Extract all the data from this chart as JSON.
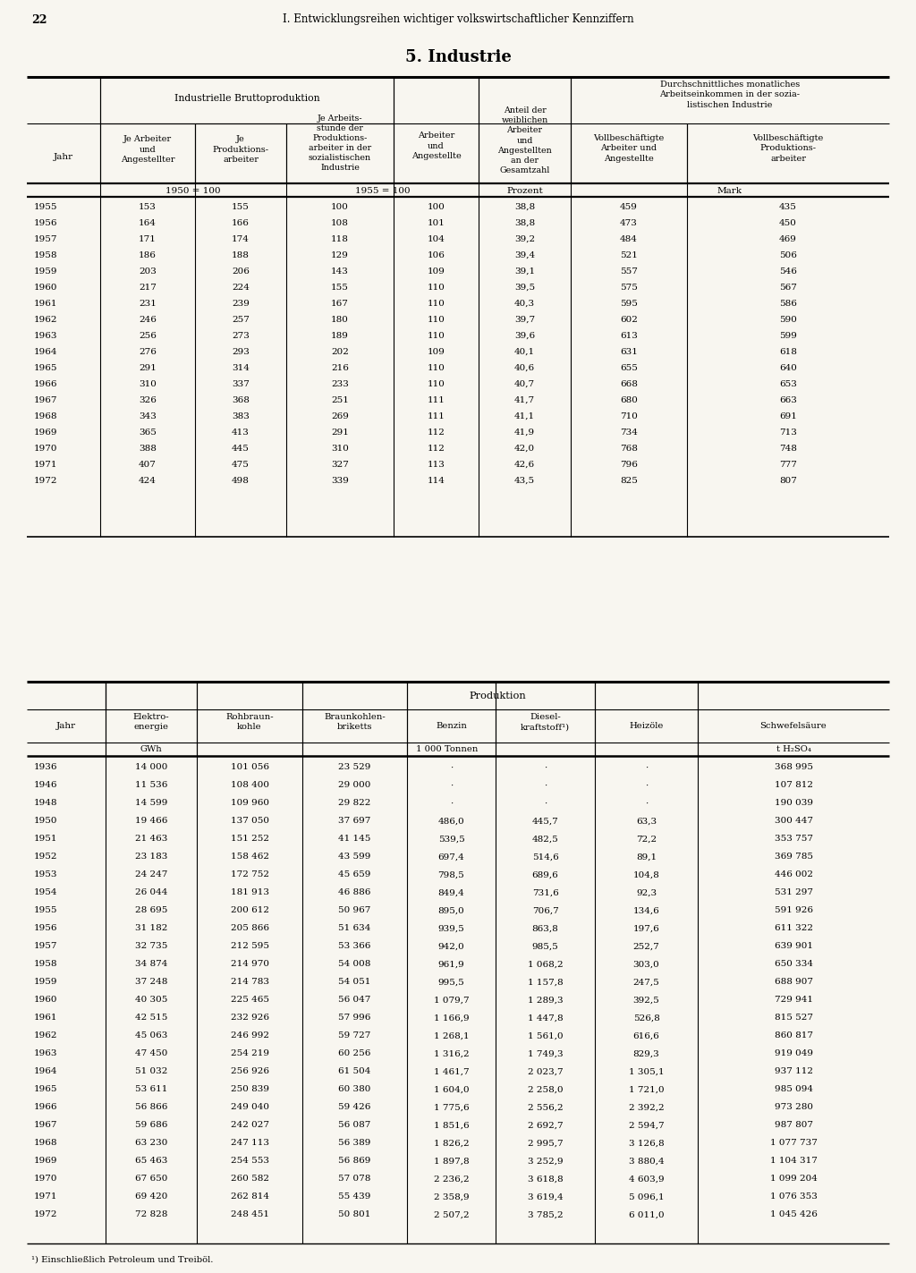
{
  "page_number": "22",
  "page_header": "I. Entwicklungsreihen wichtiger volkswirtschaftlicher Kennziffern",
  "section_title": "5. Industrie",
  "bg_color": "#f8f6f0",
  "table1": {
    "col_group1_label": "Industrielle Bruttoproduktion",
    "col_group2_label": "Durchschnittliches monatliches\nArbeitseinkommen in der sozia-\nlistischen Industrie",
    "data": [
      [
        "1955",
        "153",
        "155",
        "100",
        "100",
        "38,8",
        "459",
        "435"
      ],
      [
        "1956",
        "164",
        "166",
        "108",
        "101",
        "38,8",
        "473",
        "450"
      ],
      [
        "1957",
        "171",
        "174",
        "118",
        "104",
        "39,2",
        "484",
        "469"
      ],
      [
        "1958",
        "186",
        "188",
        "129",
        "106",
        "39,4",
        "521",
        "506"
      ],
      [
        "1959",
        "203",
        "206",
        "143",
        "109",
        "39,1",
        "557",
        "546"
      ],
      [
        "1960",
        "217",
        "224",
        "155",
        "110",
        "39,5",
        "575",
        "567"
      ],
      [
        "1961",
        "231",
        "239",
        "167",
        "110",
        "40,3",
        "595",
        "586"
      ],
      [
        "1962",
        "246",
        "257",
        "180",
        "110",
        "39,7",
        "602",
        "590"
      ],
      [
        "1963",
        "256",
        "273",
        "189",
        "110",
        "39,6",
        "613",
        "599"
      ],
      [
        "1964",
        "276",
        "293",
        "202",
        "109",
        "40,1",
        "631",
        "618"
      ],
      [
        "1965",
        "291",
        "314",
        "216",
        "110",
        "40,6",
        "655",
        "640"
      ],
      [
        "1966",
        "310",
        "337",
        "233",
        "110",
        "40,7",
        "668",
        "653"
      ],
      [
        "1967",
        "326",
        "368",
        "251",
        "111",
        "41,7",
        "680",
        "663"
      ],
      [
        "1968",
        "343",
        "383",
        "269",
        "111",
        "41,1",
        "710",
        "691"
      ],
      [
        "1969",
        "365",
        "413",
        "291",
        "112",
        "41,9",
        "734",
        "713"
      ],
      [
        "1970",
        "388",
        "445",
        "310",
        "112",
        "42,0",
        "768",
        "748"
      ],
      [
        "1971",
        "407",
        "475",
        "327",
        "113",
        "42,6",
        "796",
        "777"
      ],
      [
        "1972",
        "424",
        "498",
        "339",
        "114",
        "43,5",
        "825",
        "807"
      ]
    ]
  },
  "table2": {
    "main_header": "Produktion",
    "footnote": "¹) Einschließlich Petroleum und Treiböl.",
    "data": [
      [
        "1936",
        "14 000",
        "101 056",
        "23 529",
        "·",
        "·",
        "·",
        "368 995"
      ],
      [
        "1946",
        "11 536",
        "108 400",
        "29 000",
        "·",
        "·",
        "·",
        "107 812"
      ],
      [
        "1948",
        "14 599",
        "109 960",
        "29 822",
        "·",
        "·",
        "·",
        "190 039"
      ],
      [
        "1950",
        "19 466",
        "137 050",
        "37 697",
        "486,0",
        "445,7",
        "63,3",
        "300 447"
      ],
      [
        "1951",
        "21 463",
        "151 252",
        "41 145",
        "539,5",
        "482,5",
        "72,2",
        "353 757"
      ],
      [
        "1952",
        "23 183",
        "158 462",
        "43 599",
        "697,4",
        "514,6",
        "89,1",
        "369 785"
      ],
      [
        "1953",
        "24 247",
        "172 752",
        "45 659",
        "798,5",
        "689,6",
        "104,8",
        "446 002"
      ],
      [
        "1954",
        "26 044",
        "181 913",
        "46 886",
        "849,4",
        "731,6",
        "92,3",
        "531 297"
      ],
      [
        "1955",
        "28 695",
        "200 612",
        "50 967",
        "895,0",
        "706,7",
        "134,6",
        "591 926"
      ],
      [
        "1956",
        "31 182",
        "205 866",
        "51 634",
        "939,5",
        "863,8",
        "197,6",
        "611 322"
      ],
      [
        "1957",
        "32 735",
        "212 595",
        "53 366",
        "942,0",
        "985,5",
        "252,7",
        "639 901"
      ],
      [
        "1958",
        "34 874",
        "214 970",
        "54 008",
        "961,9",
        "1 068,2",
        "303,0",
        "650 334"
      ],
      [
        "1959",
        "37 248",
        "214 783",
        "54 051",
        "995,5",
        "1 157,8",
        "247,5",
        "688 907"
      ],
      [
        "1960",
        "40 305",
        "225 465",
        "56 047",
        "1 079,7",
        "1 289,3",
        "392,5",
        "729 941"
      ],
      [
        "1961",
        "42 515",
        "232 926",
        "57 996",
        "1 166,9",
        "1 447,8",
        "526,8",
        "815 527"
      ],
      [
        "1962",
        "45 063",
        "246 992",
        "59 727",
        "1 268,1",
        "1 561,0",
        "616,6",
        "860 817"
      ],
      [
        "1963",
        "47 450",
        "254 219",
        "60 256",
        "1 316,2",
        "1 749,3",
        "829,3",
        "919 049"
      ],
      [
        "1964",
        "51 032",
        "256 926",
        "61 504",
        "1 461,7",
        "2 023,7",
        "1 305,1",
        "937 112"
      ],
      [
        "1965",
        "53 611",
        "250 839",
        "60 380",
        "1 604,0",
        "2 258,0",
        "1 721,0",
        "985 094"
      ],
      [
        "1966",
        "56 866",
        "249 040",
        "59 426",
        "1 775,6",
        "2 556,2",
        "2 392,2",
        "973 280"
      ],
      [
        "1967",
        "59 686",
        "242 027",
        "56 087",
        "1 851,6",
        "2 692,7",
        "2 594,7",
        "987 807"
      ],
      [
        "1968",
        "63 230",
        "247 113",
        "56 389",
        "1 826,2",
        "2 995,7",
        "3 126,8",
        "1 077 737"
      ],
      [
        "1969",
        "65 463",
        "254 553",
        "56 869",
        "1 897,8",
        "3 252,9",
        "3 880,4",
        "1 104 317"
      ],
      [
        "1970",
        "67 650",
        "260 582",
        "57 078",
        "2 236,2",
        "3 618,8",
        "4 603,9",
        "1 099 204"
      ],
      [
        "1971",
        "69 420",
        "262 814",
        "55 439",
        "2 358,9",
        "3 619,4",
        "5 096,1",
        "1 076 353"
      ],
      [
        "1972",
        "72 828",
        "248 451",
        "50 801",
        "2 507,2",
        "3 785,2",
        "6 011,0",
        "1 045 426"
      ]
    ]
  }
}
